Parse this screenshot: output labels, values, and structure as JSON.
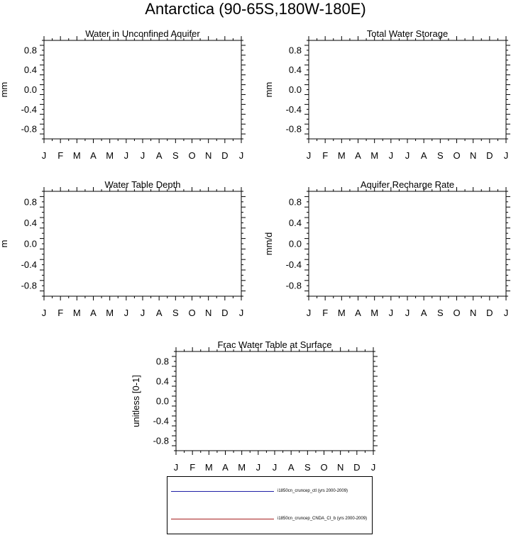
{
  "figure": {
    "title": "Antarctica (90-65S,180W-180E)"
  },
  "chart_data": [
    {
      "type": "line",
      "title": "Water in Unconfined Aquifer",
      "xlabel": "",
      "ylabel": "mm",
      "categories": [
        "J",
        "F",
        "M",
        "A",
        "M",
        "J",
        "J",
        "A",
        "S",
        "O",
        "N",
        "D",
        "J"
      ],
      "yticks": [
        "0.8",
        "0.4",
        "0.0",
        "-0.4",
        "-0.8"
      ],
      "ylim": [
        -1,
        1
      ],
      "series": []
    },
    {
      "type": "line",
      "title": "Total Water Storage",
      "xlabel": "",
      "ylabel": "mm",
      "categories": [
        "J",
        "F",
        "M",
        "A",
        "M",
        "J",
        "J",
        "A",
        "S",
        "O",
        "N",
        "D",
        "J"
      ],
      "yticks": [
        "0.8",
        "0.4",
        "0.0",
        "-0.4",
        "-0.8"
      ],
      "ylim": [
        -1,
        1
      ],
      "series": []
    },
    {
      "type": "line",
      "title": "Water Table Depth",
      "xlabel": "",
      "ylabel": "m",
      "categories": [
        "J",
        "F",
        "M",
        "A",
        "M",
        "J",
        "J",
        "A",
        "S",
        "O",
        "N",
        "D",
        "J"
      ],
      "yticks": [
        "0.8",
        "0.4",
        "0.0",
        "-0.4",
        "-0.8"
      ],
      "ylim": [
        -1,
        1
      ],
      "series": []
    },
    {
      "type": "line",
      "title": "Aquifer Recharge Rate",
      "xlabel": "",
      "ylabel": "mm/d",
      "categories": [
        "J",
        "F",
        "M",
        "A",
        "M",
        "J",
        "J",
        "A",
        "S",
        "O",
        "N",
        "D",
        "J"
      ],
      "yticks": [
        "0.8",
        "0.4",
        "0.0",
        "-0.4",
        "-0.8"
      ],
      "ylim": [
        -1,
        1
      ],
      "series": []
    },
    {
      "type": "line",
      "title": "Frac Water Table at Surface",
      "xlabel": "",
      "ylabel": "unitless [0-1]",
      "categories": [
        "J",
        "F",
        "M",
        "A",
        "M",
        "J",
        "J",
        "A",
        "S",
        "O",
        "N",
        "D",
        "J"
      ],
      "yticks": [
        "0.8",
        "0.4",
        "0.0",
        "-0.4",
        "-0.8"
      ],
      "ylim": [
        -1,
        1
      ],
      "series": []
    }
  ],
  "legend": {
    "entries": [
      {
        "label": "i1850cn_cruncep_ctl (yrs 2000-2009)",
        "color": "#1f1fa6"
      },
      {
        "label": "i1850cn_cruncep_CNDA_CI_b (yrs 2000-2009)",
        "color": "#a61f1f"
      }
    ]
  }
}
